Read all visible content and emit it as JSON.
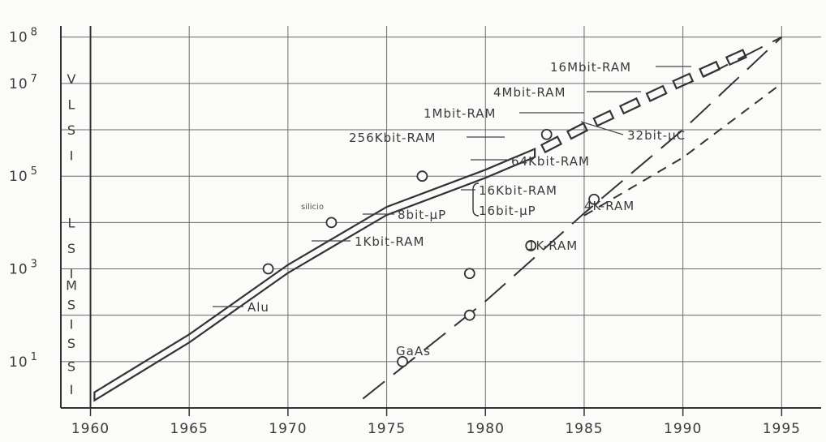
{
  "chart_data": {
    "type": "line",
    "title": "",
    "xlabel": "",
    "ylabel": "",
    "x_ticks": [
      "1960",
      "1965",
      "1970",
      "1975",
      "1980",
      "1985",
      "1990",
      "1995"
    ],
    "y_ticks": [
      {
        "base": "10",
        "exp": "8",
        "value": 100000000
      },
      {
        "base": "10",
        "exp": "7",
        "value": 10000000
      },
      {
        "base": "10",
        "exp": "5",
        "value": 100000
      },
      {
        "base": "10",
        "exp": "3",
        "value": 1000
      },
      {
        "base": "10",
        "exp": "1",
        "value": 10
      }
    ],
    "xlim": [
      1958.5,
      1997
    ],
    "ylim_log10": [
      0,
      8.1
    ],
    "y_scale": "log",
    "grid": true,
    "integration_bands": [
      {
        "letters": [
          "V",
          "L",
          "S",
          "I"
        ]
      },
      {
        "letters": [
          "L",
          "S",
          "I"
        ]
      },
      {
        "letters": [
          "M",
          "S",
          "I"
        ]
      },
      {
        "letters": [
          "S",
          "S",
          "I"
        ]
      }
    ],
    "series": [
      {
        "style": "band",
        "points": [
          [
            1960.2,
            0.25
          ],
          [
            1965,
            1.5
          ],
          [
            1970,
            3.0
          ],
          [
            1975,
            4.25
          ],
          [
            1980,
            5.05
          ],
          [
            1982.5,
            5.5
          ]
        ]
      },
      {
        "style": "dashed-band",
        "points": [
          [
            1982.5,
            5.5
          ],
          [
            1985,
            6.05
          ],
          [
            1990,
            7.05
          ],
          [
            1995,
            8.0
          ]
        ]
      },
      {
        "style": "long-dash",
        "points": [
          [
            1973.8,
            0.2
          ],
          [
            1980,
            2.3
          ],
          [
            1985,
            4.2
          ],
          [
            1990,
            6.0
          ],
          [
            1995,
            8.0
          ]
        ]
      },
      {
        "style": "short-dash",
        "points": [
          [
            1985,
            4.15
          ],
          [
            1990,
            5.4
          ],
          [
            1995,
            7.0
          ]
        ]
      }
    ],
    "markers": [
      {
        "x": 1969,
        "y": 3.0
      },
      {
        "x": 1972.2,
        "y": 4.0
      },
      {
        "x": 1976.8,
        "y": 5.0
      },
      {
        "x": 1975.8,
        "y": 1.0
      },
      {
        "x": 1979.2,
        "y": 2.0
      },
      {
        "x": 1979.2,
        "y": 2.9
      },
      {
        "x": 1982.3,
        "y": 3.5
      },
      {
        "x": 1983.1,
        "y": 5.9
      },
      {
        "x": 1985.5,
        "y": 4.5
      }
    ],
    "annotations": [
      {
        "text": "Alu"
      },
      {
        "text": "1Kbit-RAM"
      },
      {
        "text": "8bit-µP"
      },
      {
        "text": "silicio"
      },
      {
        "text": "16Kbit-RAM"
      },
      {
        "text": "16bit-µP"
      },
      {
        "text": "64Kbit-RAM"
      },
      {
        "text": "256Kbit-RAM"
      },
      {
        "text": "1Mbit-RAM"
      },
      {
        "text": "4Mbit-RAM"
      },
      {
        "text": "16Mbit-RAM"
      },
      {
        "text": "32bit-µC"
      },
      {
        "text": "4K-RAM"
      },
      {
        "text": "1K-RAM"
      },
      {
        "text": "GaAs"
      }
    ]
  }
}
